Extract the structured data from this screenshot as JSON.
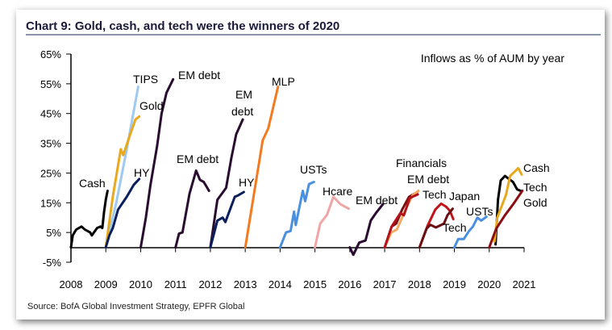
{
  "title": "Chart 9: Gold, cash, and tech were the winners of 2020",
  "annotation": "Inflows as % of AUM by year",
  "source": "Source: BofA Global Investment Strategy, EPFR Global",
  "chart_data": {
    "type": "line",
    "title": "Chart 9: Gold, cash, and tech were the winners of 2020",
    "xlim": [
      2008,
      2021
    ],
    "ylim": [
      -5,
      65
    ],
    "x_ticks": [
      "2008",
      "2009",
      "2010",
      "2011",
      "2012",
      "2013",
      "2014",
      "2015",
      "2016",
      "2017",
      "2018",
      "2019",
      "2020",
      "2021"
    ],
    "y_ticks": [
      "65%",
      "55%",
      "45%",
      "35%",
      "25%",
      "15%",
      "5%",
      "-5%"
    ],
    "grid": false,
    "series": [
      {
        "name": "Cash",
        "color": "#000000",
        "points": [
          [
            2008,
            0
          ],
          [
            2008.05,
            4
          ],
          [
            2008.15,
            6
          ],
          [
            2008.3,
            7
          ],
          [
            2008.4,
            6
          ],
          [
            2008.55,
            5
          ],
          [
            2008.6,
            4
          ],
          [
            2008.75,
            6.5
          ],
          [
            2008.85,
            7
          ],
          [
            2008.9,
            6.5
          ],
          [
            2008.95,
            12
          ],
          [
            2009.0,
            16
          ],
          [
            2009.05,
            19
          ]
        ]
      },
      {
        "name": "TIPS",
        "color": "#9ec9f0",
        "points": [
          [
            2009,
            0
          ],
          [
            2009.3,
            15
          ],
          [
            2009.6,
            33
          ],
          [
            2009.93,
            54
          ]
        ]
      },
      {
        "name": "Gold",
        "color": "#e8a91c",
        "points": [
          [
            2009,
            0
          ],
          [
            2009.2,
            17
          ],
          [
            2009.43,
            33
          ],
          [
            2009.5,
            31
          ],
          [
            2009.7,
            38
          ],
          [
            2009.85,
            43
          ],
          [
            2009.96,
            44
          ]
        ]
      },
      {
        "name": "HY",
        "color": "#0b1f5c",
        "points": [
          [
            2009,
            0
          ],
          [
            2009.1,
            4
          ],
          [
            2009.2,
            6.5
          ],
          [
            2009.35,
            12.7
          ],
          [
            2009.6,
            17
          ],
          [
            2009.8,
            21
          ],
          [
            2009.96,
            23
          ]
        ]
      },
      {
        "name": "EM debt",
        "color": "#2a0c30",
        "points": [
          [
            2010,
            0
          ],
          [
            2010.15,
            10
          ],
          [
            2010.28,
            21
          ],
          [
            2010.47,
            34
          ],
          [
            2010.6,
            45
          ],
          [
            2010.74,
            52
          ],
          [
            2010.93,
            56.5
          ]
        ]
      },
      {
        "name": "EM debt",
        "color": "#2a0c30",
        "points": [
          [
            2011,
            0
          ],
          [
            2011.1,
            4.6
          ],
          [
            2011.2,
            5
          ],
          [
            2011.4,
            18
          ],
          [
            2011.59,
            25.8
          ],
          [
            2011.7,
            22.7
          ],
          [
            2011.81,
            22
          ],
          [
            2011.96,
            19
          ]
        ]
      },
      {
        "name": "EM debt",
        "color": "#2a0c30",
        "points": [
          [
            2012,
            0
          ],
          [
            2012.2,
            16
          ],
          [
            2012.45,
            20
          ],
          [
            2012.6,
            30
          ],
          [
            2012.74,
            38
          ],
          [
            2012.93,
            43
          ]
        ]
      },
      {
        "name": "HY",
        "color": "#0b1f5c",
        "points": [
          [
            2012,
            0
          ],
          [
            2012.2,
            9
          ],
          [
            2012.35,
            10
          ],
          [
            2012.43,
            8.5
          ],
          [
            2012.7,
            17
          ],
          [
            2012.8,
            17.5
          ],
          [
            2012.96,
            18.6
          ]
        ]
      },
      {
        "name": "MLP",
        "color": "#f47a20",
        "points": [
          [
            2013,
            0
          ],
          [
            2013.25,
            18
          ],
          [
            2013.5,
            36
          ],
          [
            2013.66,
            40
          ],
          [
            2013.94,
            54
          ]
        ]
      },
      {
        "name": "USTs",
        "color": "#4a8fe0",
        "points": [
          [
            2014,
            0
          ],
          [
            2014.17,
            5
          ],
          [
            2014.3,
            5.5
          ],
          [
            2014.4,
            12
          ],
          [
            2014.45,
            7.5
          ],
          [
            2014.65,
            19
          ],
          [
            2014.72,
            15.5
          ],
          [
            2014.83,
            21.3
          ],
          [
            2014.97,
            22
          ]
        ]
      },
      {
        "name": "Hcare",
        "color": "#f0a6a6",
        "points": [
          [
            2015,
            0
          ],
          [
            2015.15,
            8
          ],
          [
            2015.35,
            11
          ],
          [
            2015.53,
            17
          ],
          [
            2015.73,
            14.5
          ],
          [
            2015.97,
            13
          ]
        ]
      },
      {
        "name": "EM debt",
        "color": "#2a0c30",
        "points": [
          [
            2016,
            0
          ],
          [
            2016.1,
            -2.5
          ],
          [
            2016.27,
            1.6
          ],
          [
            2016.45,
            2.3
          ],
          [
            2016.6,
            9
          ],
          [
            2016.76,
            11.7
          ],
          [
            2016.95,
            14.5
          ]
        ]
      },
      {
        "name": "Financials",
        "color": "#7a0f12",
        "points": [
          [
            2017,
            0
          ],
          [
            2017.2,
            7
          ],
          [
            2017.33,
            8
          ],
          [
            2017.5,
            12.7
          ],
          [
            2017.7,
            17
          ],
          [
            2017.93,
            18.5
          ]
        ]
      },
      {
        "name": "EM debt",
        "color": "#f6a860",
        "points": [
          [
            2017,
            0
          ],
          [
            2017.19,
            5
          ],
          [
            2017.35,
            6
          ],
          [
            2017.63,
            13.5
          ],
          [
            2017.8,
            17.5
          ],
          [
            2017.97,
            19
          ]
        ]
      },
      {
        "name": "Tech",
        "color": "#b3141b",
        "points": [
          [
            2017,
            0
          ],
          [
            2017.2,
            7
          ],
          [
            2017.45,
            11.5
          ],
          [
            2017.55,
            10.8
          ],
          [
            2017.72,
            16.6
          ],
          [
            2017.95,
            17.8
          ]
        ]
      },
      {
        "name": "Japan",
        "color": "#c0141b",
        "points": [
          [
            2018,
            0
          ],
          [
            2018.23,
            7.3
          ],
          [
            2018.45,
            12.7
          ],
          [
            2018.62,
            14.7
          ],
          [
            2018.76,
            13.7
          ],
          [
            2018.87,
            12.3
          ],
          [
            2018.97,
            9.5
          ]
        ]
      },
      {
        "name": "Tech",
        "color": "#6b0e10",
        "points": [
          [
            2018,
            0
          ],
          [
            2018.2,
            6.3
          ],
          [
            2018.31,
            7.6
          ],
          [
            2018.47,
            6.7
          ],
          [
            2018.7,
            8
          ],
          [
            2018.8,
            10.8
          ],
          [
            2018.95,
            13
          ]
        ]
      },
      {
        "name": "USTs",
        "color": "#4a8fe0",
        "points": [
          [
            2019,
            0
          ],
          [
            2019.11,
            2.8
          ],
          [
            2019.27,
            2.8
          ],
          [
            2019.42,
            5.5
          ],
          [
            2019.53,
            7
          ],
          [
            2019.66,
            10
          ],
          [
            2019.77,
            9
          ],
          [
            2019.92,
            10.3
          ]
        ]
      },
      {
        "name": "Cash",
        "color": "#000000",
        "points": [
          [
            2020.18,
            1
          ],
          [
            2020.25,
            16
          ],
          [
            2020.33,
            22.5
          ],
          [
            2020.45,
            24
          ],
          [
            2020.68,
            22
          ],
          [
            2020.8,
            19.5
          ],
          [
            2020.9,
            19
          ]
        ]
      },
      {
        "name": "Gold",
        "color": "#e8a91c",
        "points": [
          [
            2020.15,
            2
          ],
          [
            2020.23,
            10
          ],
          [
            2020.48,
            17.6
          ],
          [
            2020.6,
            24
          ],
          [
            2020.83,
            26.6
          ],
          [
            2020.93,
            24.5
          ]
        ]
      },
      {
        "name": "Tech",
        "color": "#8b0d12",
        "points": [
          [
            2020,
            0
          ],
          [
            2020.2,
            6.3
          ],
          [
            2020.45,
            10.8
          ],
          [
            2020.68,
            14.4
          ],
          [
            2020.95,
            19
          ]
        ]
      }
    ],
    "labels": [
      "Cash",
      "TIPS",
      "Gold",
      "HY",
      "EM debt",
      "EM debt",
      "EM",
      "debt",
      "HY",
      "MLP",
      "USTs",
      "Hcare",
      "EM debt",
      "Financials",
      "EM debt",
      "Tech",
      "Japan",
      "Tech",
      "USTs",
      "Cash",
      "Tech",
      "Gold"
    ]
  }
}
